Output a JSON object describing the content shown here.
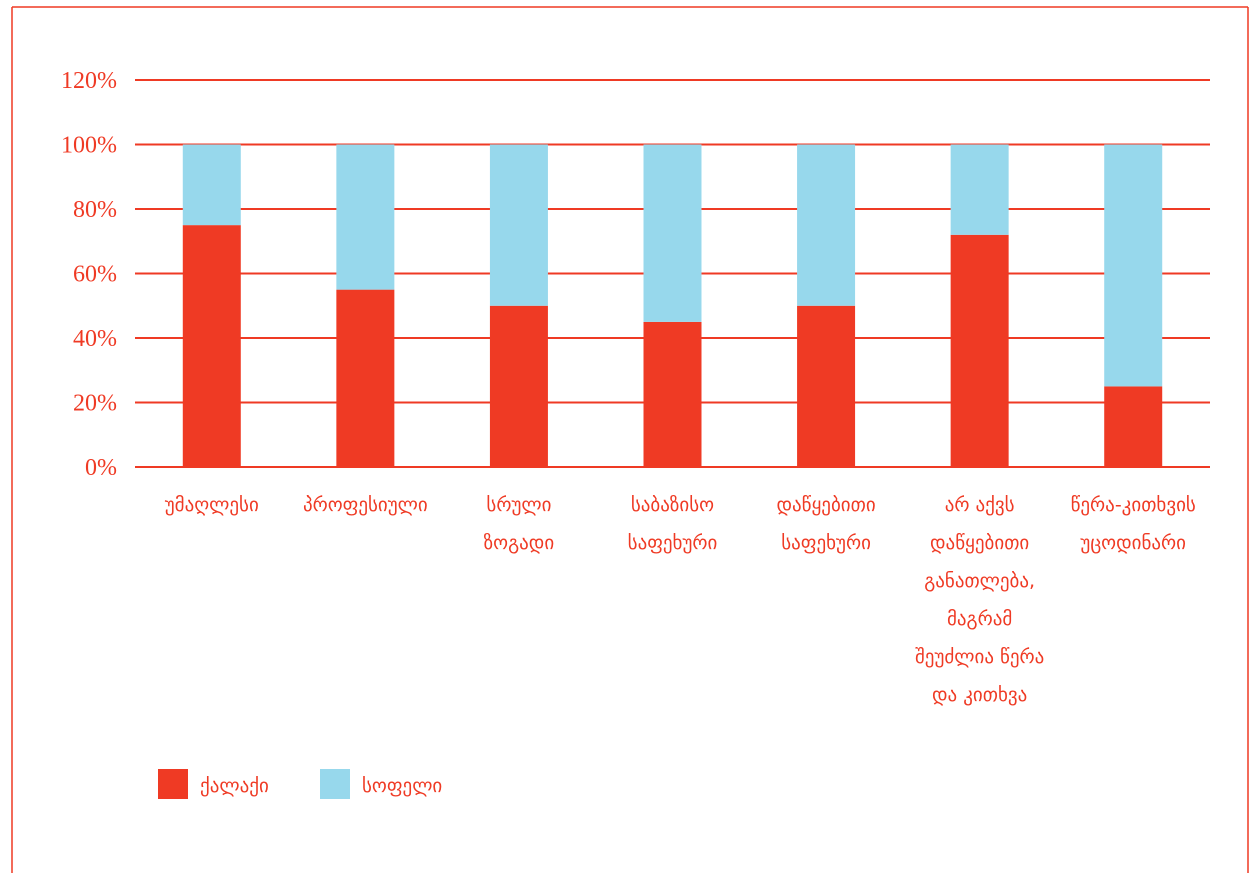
{
  "chart_data": {
    "type": "bar",
    "stacked": true,
    "categories": [
      [
        "უმაღლესი"
      ],
      [
        "პროფესიული"
      ],
      [
        "სრული",
        "ზოგადი"
      ],
      [
        "საბაზისო",
        "საფეხური"
      ],
      [
        "დაწყებითი",
        "საფეხური"
      ],
      [
        "არ აქვს",
        "დაწყებითი",
        "განათლება,",
        "მაგრამ",
        "შეუძლია წერა",
        "და კითხვა"
      ],
      [
        "წერა-კითხვის",
        "უცოდინარი"
      ]
    ],
    "series": [
      {
        "name": "ქალაქი",
        "color": "#ef3a24",
        "values": [
          75,
          55,
          50,
          45,
          50,
          72,
          25
        ]
      },
      {
        "name": "სოფელი",
        "color": "#97d8ec",
        "values": [
          25,
          45,
          50,
          55,
          50,
          28,
          75
        ]
      }
    ],
    "ylim": [
      0,
      120
    ],
    "yticks": [
      "0%",
      "20%",
      "40%",
      "60%",
      "80%",
      "100%",
      "120%"
    ],
    "grid": true,
    "legend": "bottom-left",
    "accent_color": "#ef3a24"
  }
}
